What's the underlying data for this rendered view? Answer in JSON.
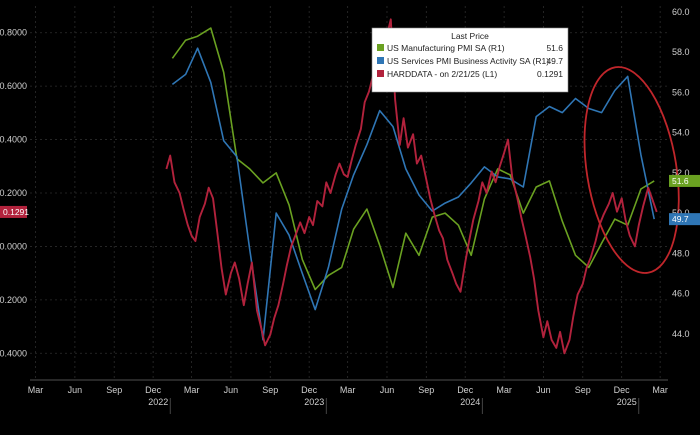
{
  "chart_data": {
    "type": "line",
    "legend": {
      "title": "Last Price",
      "placement": "top-right"
    },
    "left_axis": {
      "range": [
        -0.5,
        0.9
      ],
      "ticks": [
        -0.4,
        -0.2,
        0.0,
        0.2,
        0.4,
        0.6,
        0.8
      ],
      "tick_labels": [
        "-0.4000",
        "-0.2000",
        "0.0000",
        "0.2000",
        "0.4000",
        "0.6000",
        "0.8000"
      ]
    },
    "right_axis": {
      "range": [
        41.7,
        60.3
      ],
      "ticks": [
        44,
        46,
        48,
        50,
        52,
        54,
        56,
        58,
        60
      ],
      "tick_labels": [
        "44.0",
        "46.0",
        "48.0",
        "50.0",
        "52.0",
        "54.0",
        "56.0",
        "58.0",
        "60.0"
      ]
    },
    "x_axis": {
      "month_ticks": [
        {
          "label": "Mar",
          "date": "2021-03"
        },
        {
          "label": "Jun",
          "date": "2021-06"
        },
        {
          "label": "Sep",
          "date": "2021-09"
        },
        {
          "label": "Dec",
          "date": "2021-12"
        },
        {
          "label": "Mar",
          "date": "2022-03"
        },
        {
          "label": "Jun",
          "date": "2022-06"
        },
        {
          "label": "Sep",
          "date": "2022-09"
        },
        {
          "label": "Dec",
          "date": "2022-12"
        },
        {
          "label": "Mar",
          "date": "2023-03"
        },
        {
          "label": "Jun",
          "date": "2023-06"
        },
        {
          "label": "Sep",
          "date": "2023-09"
        },
        {
          "label": "Dec",
          "date": "2023-12"
        },
        {
          "label": "Mar",
          "date": "2024-03"
        },
        {
          "label": "Jun",
          "date": "2024-06"
        },
        {
          "label": "Sep",
          "date": "2024-09"
        },
        {
          "label": "Dec",
          "date": "2024-12"
        },
        {
          "label": "Mar",
          "date": "2025-03"
        }
      ],
      "year_labels": [
        "2022",
        "2023",
        "2024",
        "2025"
      ]
    },
    "series": [
      {
        "name": "US Manufacturing PMI SA",
        "axis_tag": "(R1)",
        "last_value": "51.6",
        "color": "#6aa121",
        "values": [
          [
            "2022-01",
            57.7
          ],
          [
            "2022-02",
            58.6
          ],
          [
            "2022-03",
            58.8
          ],
          [
            "2022-04",
            59.2
          ],
          [
            "2022-05",
            57.0
          ],
          [
            "2022-06",
            52.7
          ],
          [
            "2022-07",
            52.2
          ],
          [
            "2022-08",
            51.5
          ],
          [
            "2022-09",
            52.0
          ],
          [
            "2022-10",
            50.4
          ],
          [
            "2022-11",
            47.7
          ],
          [
            "2022-12",
            46.2
          ],
          [
            "2023-01",
            46.9
          ],
          [
            "2023-02",
            47.3
          ],
          [
            "2023-03",
            49.2
          ],
          [
            "2023-04",
            50.2
          ],
          [
            "2023-05",
            48.4
          ],
          [
            "2023-06",
            46.3
          ],
          [
            "2023-07",
            49.0
          ],
          [
            "2023-08",
            47.9
          ],
          [
            "2023-09",
            49.8
          ],
          [
            "2023-10",
            50.0
          ],
          [
            "2023-11",
            49.4
          ],
          [
            "2023-12",
            47.9
          ],
          [
            "2024-01",
            50.7
          ],
          [
            "2024-02",
            52.2
          ],
          [
            "2024-03",
            51.9
          ],
          [
            "2024-04",
            50.0
          ],
          [
            "2024-05",
            51.3
          ],
          [
            "2024-06",
            51.6
          ],
          [
            "2024-07",
            49.6
          ],
          [
            "2024-08",
            47.9
          ],
          [
            "2024-09",
            47.3
          ],
          [
            "2024-10",
            48.5
          ],
          [
            "2024-11",
            49.7
          ],
          [
            "2024-12",
            49.4
          ],
          [
            "2025-01",
            51.2
          ],
          [
            "2025-02",
            51.6
          ]
        ]
      },
      {
        "name": "US Services PMI Business Activity SA",
        "axis_tag": "(R1)",
        "last_value": "49.7",
        "color": "#2f76b5",
        "values": [
          [
            "2022-01",
            56.4
          ],
          [
            "2022-02",
            56.9
          ],
          [
            "2022-03",
            58.2
          ],
          [
            "2022-04",
            56.5
          ],
          [
            "2022-05",
            53.6
          ],
          [
            "2022-06",
            52.8
          ],
          [
            "2022-07",
            48.2
          ],
          [
            "2022-08",
            43.7
          ],
          [
            "2022-09",
            50.0
          ],
          [
            "2022-10",
            48.9
          ],
          [
            "2022-11",
            47.0
          ],
          [
            "2022-12",
            45.2
          ],
          [
            "2023-01",
            47.3
          ],
          [
            "2023-02",
            50.2
          ],
          [
            "2023-03",
            51.9
          ],
          [
            "2023-04",
            53.4
          ],
          [
            "2023-05",
            55.1
          ],
          [
            "2023-06",
            54.3
          ],
          [
            "2023-07",
            52.2
          ],
          [
            "2023-08",
            50.9
          ],
          [
            "2023-09",
            50.1
          ],
          [
            "2023-10",
            50.5
          ],
          [
            "2023-11",
            50.8
          ],
          [
            "2023-12",
            51.5
          ],
          [
            "2024-01",
            52.3
          ],
          [
            "2024-02",
            51.8
          ],
          [
            "2024-03",
            51.7
          ],
          [
            "2024-04",
            51.3
          ],
          [
            "2024-05",
            54.8
          ],
          [
            "2024-06",
            55.3
          ],
          [
            "2024-07",
            55.0
          ],
          [
            "2024-08",
            55.7
          ],
          [
            "2024-09",
            55.2
          ],
          [
            "2024-10",
            55.0
          ],
          [
            "2024-11",
            56.1
          ],
          [
            "2024-12",
            56.8
          ],
          [
            "2025-01",
            52.9
          ],
          [
            "2025-02",
            49.7
          ]
        ]
      },
      {
        "name": "HARDDATA - on 2/21/25",
        "axis_tag": "(L1)",
        "last_value": "0.1291",
        "color": "#b2223c",
        "values": [
          [
            "2022-01-01",
            0.29
          ],
          [
            "2022-01-10",
            0.34
          ],
          [
            "2022-01-20",
            0.24
          ],
          [
            "2022-02-01",
            0.2
          ],
          [
            "2022-02-10",
            0.14
          ],
          [
            "2022-02-20",
            0.08
          ],
          [
            "2022-03-01",
            0.04
          ],
          [
            "2022-03-10",
            0.02
          ],
          [
            "2022-03-20",
            0.11
          ],
          [
            "2022-04-01",
            0.16
          ],
          [
            "2022-04-10",
            0.22
          ],
          [
            "2022-04-20",
            0.18
          ],
          [
            "2022-05-01",
            0.04
          ],
          [
            "2022-05-10",
            -0.08
          ],
          [
            "2022-05-20",
            -0.18
          ],
          [
            "2022-06-01",
            -0.1
          ],
          [
            "2022-06-10",
            -0.06
          ],
          [
            "2022-06-20",
            -0.12
          ],
          [
            "2022-07-01",
            -0.22
          ],
          [
            "2022-07-10",
            -0.14
          ],
          [
            "2022-07-20",
            -0.06
          ],
          [
            "2022-08-01",
            -0.24
          ],
          [
            "2022-08-10",
            -0.3
          ],
          [
            "2022-08-20",
            -0.37
          ],
          [
            "2022-09-01",
            -0.33
          ],
          [
            "2022-09-10",
            -0.27
          ],
          [
            "2022-09-20",
            -0.22
          ],
          [
            "2022-10-01",
            -0.14
          ],
          [
            "2022-10-10",
            -0.07
          ],
          [
            "2022-10-20",
            0.0
          ],
          [
            "2022-11-01",
            0.05
          ],
          [
            "2022-11-10",
            0.09
          ],
          [
            "2022-11-20",
            0.05
          ],
          [
            "2022-12-01",
            0.11
          ],
          [
            "2022-12-10",
            0.08
          ],
          [
            "2022-12-20",
            0.17
          ],
          [
            "2023-01-01",
            0.15
          ],
          [
            "2023-01-10",
            0.24
          ],
          [
            "2023-01-20",
            0.2
          ],
          [
            "2023-02-01",
            0.27
          ],
          [
            "2023-02-10",
            0.31
          ],
          [
            "2023-02-20",
            0.27
          ],
          [
            "2023-03-01",
            0.26
          ],
          [
            "2023-03-10",
            0.32
          ],
          [
            "2023-03-20",
            0.38
          ],
          [
            "2023-04-01",
            0.44
          ],
          [
            "2023-04-10",
            0.54
          ],
          [
            "2023-04-20",
            0.58
          ],
          [
            "2023-05-01",
            0.65
          ],
          [
            "2023-05-10",
            0.74
          ],
          [
            "2023-05-20",
            0.62
          ],
          [
            "2023-06-01",
            0.79
          ],
          [
            "2023-06-10",
            0.85
          ],
          [
            "2023-06-20",
            0.55
          ],
          [
            "2023-07-01",
            0.38
          ],
          [
            "2023-07-10",
            0.48
          ],
          [
            "2023-07-20",
            0.37
          ],
          [
            "2023-08-01",
            0.42
          ],
          [
            "2023-08-10",
            0.31
          ],
          [
            "2023-08-20",
            0.34
          ],
          [
            "2023-09-01",
            0.25
          ],
          [
            "2023-09-10",
            0.18
          ],
          [
            "2023-09-20",
            0.12
          ],
          [
            "2023-10-01",
            0.06
          ],
          [
            "2023-10-10",
            0.03
          ],
          [
            "2023-10-20",
            -0.05
          ],
          [
            "2023-11-01",
            -0.1
          ],
          [
            "2023-11-10",
            -0.14
          ],
          [
            "2023-11-20",
            -0.17
          ],
          [
            "2023-12-01",
            -0.06
          ],
          [
            "2023-12-10",
            0.02
          ],
          [
            "2023-12-20",
            0.1
          ],
          [
            "2024-01-01",
            0.17
          ],
          [
            "2024-01-10",
            0.24
          ],
          [
            "2024-01-20",
            0.2
          ],
          [
            "2024-02-01",
            0.28
          ],
          [
            "2024-02-10",
            0.24
          ],
          [
            "2024-02-20",
            0.3
          ],
          [
            "2024-03-01",
            0.35
          ],
          [
            "2024-03-10",
            0.4
          ],
          [
            "2024-03-20",
            0.26
          ],
          [
            "2024-04-01",
            0.18
          ],
          [
            "2024-04-10",
            0.11
          ],
          [
            "2024-04-20",
            0.04
          ],
          [
            "2024-05-01",
            -0.04
          ],
          [
            "2024-05-10",
            -0.12
          ],
          [
            "2024-05-20",
            -0.24
          ],
          [
            "2024-06-01",
            -0.34
          ],
          [
            "2024-06-10",
            -0.28
          ],
          [
            "2024-06-20",
            -0.35
          ],
          [
            "2024-07-01",
            -0.38
          ],
          [
            "2024-07-10",
            -0.32
          ],
          [
            "2024-07-20",
            -0.4
          ],
          [
            "2024-08-01",
            -0.35
          ],
          [
            "2024-08-10",
            -0.26
          ],
          [
            "2024-08-20",
            -0.18
          ],
          [
            "2024-09-01",
            -0.14
          ],
          [
            "2024-09-10",
            -0.08
          ],
          [
            "2024-09-20",
            -0.04
          ],
          [
            "2024-10-01",
            0.02
          ],
          [
            "2024-10-10",
            0.08
          ],
          [
            "2024-10-20",
            0.12
          ],
          [
            "2024-11-01",
            0.16
          ],
          [
            "2024-11-10",
            0.2
          ],
          [
            "2024-11-20",
            0.13
          ],
          [
            "2024-12-01",
            0.18
          ],
          [
            "2024-12-10",
            0.1
          ],
          [
            "2024-12-20",
            0.04
          ],
          [
            "2025-01-01",
            0.0
          ],
          [
            "2025-01-10",
            0.08
          ],
          [
            "2025-01-20",
            0.15
          ],
          [
            "2025-02-01",
            0.22
          ],
          [
            "2025-02-10",
            0.18
          ],
          [
            "2025-02-21",
            0.1291
          ]
        ]
      }
    ],
    "annotation": {
      "type": "ellipse",
      "color": "#c0262b",
      "encloses": {
        "from": "2024-11",
        "to": "2025-02"
      }
    }
  }
}
